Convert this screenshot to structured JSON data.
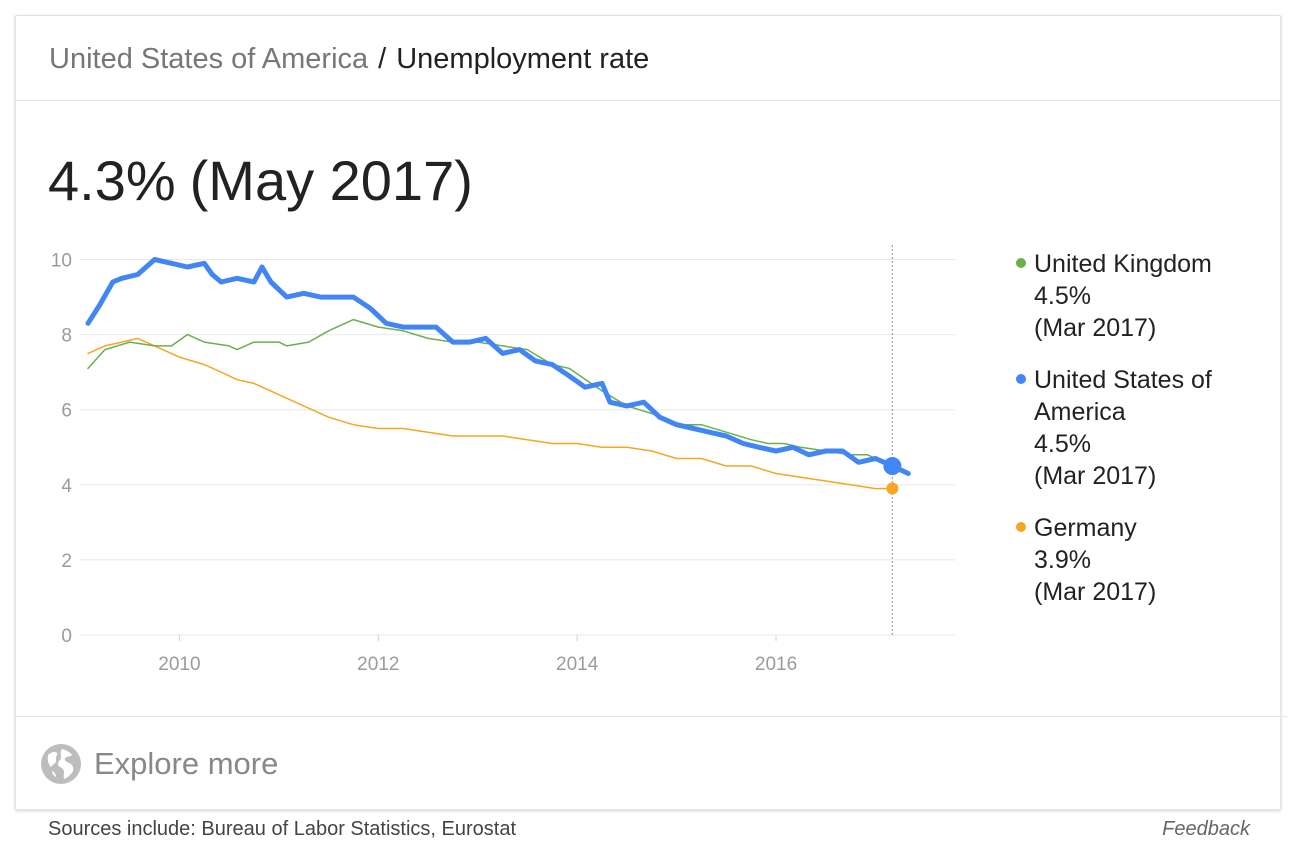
{
  "header": {
    "location": "United States of America",
    "separator": "/",
    "topic": "Unemployment rate"
  },
  "headline": {
    "value": "4.3%",
    "date": "(May 2017)"
  },
  "legend": [
    {
      "name": "United Kingdom",
      "value": "4.5%",
      "date": "(Mar 2017)",
      "color": "#6ab04c"
    },
    {
      "name_line1": "United States of",
      "name_line2": "America",
      "value": "4.5%",
      "date": "(Mar 2017)",
      "color": "#4285f4"
    },
    {
      "name": "Germany",
      "value": "3.9%",
      "date": "(Mar 2017)",
      "color": "#f5a623"
    }
  ],
  "explore": {
    "icon": "globe-icon",
    "label": "Explore more"
  },
  "footer": {
    "sources": "Sources include: Bureau of Labor Statistics, Eurostat",
    "feedback": "Feedback"
  },
  "chart_data": {
    "type": "line",
    "xlim": [
      2009.0,
      2017.8
    ],
    "ylim": [
      0,
      10
    ],
    "x_ticks": [
      2010,
      2012,
      2014,
      2016
    ],
    "x_tick_labels": [
      "2010",
      "2012",
      "2014",
      "2016"
    ],
    "y_ticks": [
      0,
      2,
      4,
      6,
      8,
      10
    ],
    "y_tick_labels": [
      "0",
      "2",
      "4",
      "6",
      "8",
      "10"
    ],
    "grid": "horizontal",
    "legend_position": "right",
    "marker_x": 2017.17,
    "series": [
      {
        "name": "United Kingdom",
        "color": "#6ab04c",
        "line_width": 1.5,
        "points": [
          [
            2009.08,
            7.1
          ],
          [
            2009.25,
            7.6
          ],
          [
            2009.5,
            7.8
          ],
          [
            2009.75,
            7.7
          ],
          [
            2009.92,
            7.7
          ],
          [
            2010.08,
            8.0
          ],
          [
            2010.25,
            7.8
          ],
          [
            2010.5,
            7.7
          ],
          [
            2010.58,
            7.6
          ],
          [
            2010.75,
            7.8
          ],
          [
            2011.0,
            7.8
          ],
          [
            2011.08,
            7.7
          ],
          [
            2011.3,
            7.8
          ],
          [
            2011.5,
            8.1
          ],
          [
            2011.75,
            8.4
          ],
          [
            2012.0,
            8.2
          ],
          [
            2012.25,
            8.1
          ],
          [
            2012.5,
            7.9
          ],
          [
            2012.75,
            7.8
          ],
          [
            2013.0,
            7.8
          ],
          [
            2013.25,
            7.7
          ],
          [
            2013.5,
            7.6
          ],
          [
            2013.75,
            7.2
          ],
          [
            2013.92,
            7.1
          ],
          [
            2014.25,
            6.5
          ],
          [
            2014.5,
            6.1
          ],
          [
            2014.75,
            5.9
          ],
          [
            2014.92,
            5.7
          ],
          [
            2015.08,
            5.6
          ],
          [
            2015.25,
            5.6
          ],
          [
            2015.5,
            5.4
          ],
          [
            2015.75,
            5.2
          ],
          [
            2015.92,
            5.1
          ],
          [
            2016.08,
            5.1
          ],
          [
            2016.25,
            5.0
          ],
          [
            2016.5,
            4.9
          ],
          [
            2016.75,
            4.8
          ],
          [
            2016.92,
            4.8
          ],
          [
            2017.17,
            4.5
          ]
        ]
      },
      {
        "name": "United States of America",
        "color": "#4285f4",
        "line_width": 5,
        "points": [
          [
            2009.08,
            8.3
          ],
          [
            2009.2,
            8.8
          ],
          [
            2009.33,
            9.4
          ],
          [
            2009.42,
            9.5
          ],
          [
            2009.58,
            9.6
          ],
          [
            2009.75,
            10.0
          ],
          [
            2009.92,
            9.9
          ],
          [
            2010.08,
            9.8
          ],
          [
            2010.25,
            9.9
          ],
          [
            2010.33,
            9.6
          ],
          [
            2010.42,
            9.4
          ],
          [
            2010.58,
            9.5
          ],
          [
            2010.75,
            9.4
          ],
          [
            2010.83,
            9.8
          ],
          [
            2010.92,
            9.4
          ],
          [
            2011.08,
            9.0
          ],
          [
            2011.25,
            9.1
          ],
          [
            2011.42,
            9.0
          ],
          [
            2011.58,
            9.0
          ],
          [
            2011.75,
            9.0
          ],
          [
            2011.92,
            8.7
          ],
          [
            2012.08,
            8.3
          ],
          [
            2012.25,
            8.2
          ],
          [
            2012.58,
            8.2
          ],
          [
            2012.75,
            7.8
          ],
          [
            2012.92,
            7.8
          ],
          [
            2013.08,
            7.9
          ],
          [
            2013.25,
            7.5
          ],
          [
            2013.42,
            7.6
          ],
          [
            2013.58,
            7.3
          ],
          [
            2013.75,
            7.2
          ],
          [
            2013.92,
            6.9
          ],
          [
            2014.08,
            6.6
          ],
          [
            2014.25,
            6.7
          ],
          [
            2014.33,
            6.2
          ],
          [
            2014.5,
            6.1
          ],
          [
            2014.67,
            6.2
          ],
          [
            2014.83,
            5.8
          ],
          [
            2015.0,
            5.6
          ],
          [
            2015.17,
            5.5
          ],
          [
            2015.33,
            5.4
          ],
          [
            2015.5,
            5.3
          ],
          [
            2015.67,
            5.1
          ],
          [
            2015.83,
            5.0
          ],
          [
            2016.0,
            4.9
          ],
          [
            2016.17,
            5.0
          ],
          [
            2016.33,
            4.8
          ],
          [
            2016.5,
            4.9
          ],
          [
            2016.67,
            4.9
          ],
          [
            2016.83,
            4.6
          ],
          [
            2017.0,
            4.7
          ],
          [
            2017.17,
            4.5
          ],
          [
            2017.25,
            4.4
          ],
          [
            2017.33,
            4.3
          ]
        ]
      },
      {
        "name": "Germany",
        "color": "#f5a623",
        "line_width": 1.5,
        "points": [
          [
            2009.08,
            7.5
          ],
          [
            2009.25,
            7.7
          ],
          [
            2009.42,
            7.8
          ],
          [
            2009.58,
            7.9
          ],
          [
            2009.75,
            7.7
          ],
          [
            2010.0,
            7.4
          ],
          [
            2010.25,
            7.2
          ],
          [
            2010.42,
            7.0
          ],
          [
            2010.58,
            6.8
          ],
          [
            2010.75,
            6.7
          ],
          [
            2011.0,
            6.4
          ],
          [
            2011.25,
            6.1
          ],
          [
            2011.5,
            5.8
          ],
          [
            2011.75,
            5.6
          ],
          [
            2012.0,
            5.5
          ],
          [
            2012.25,
            5.5
          ],
          [
            2012.5,
            5.4
          ],
          [
            2012.75,
            5.3
          ],
          [
            2013.0,
            5.3
          ],
          [
            2013.25,
            5.3
          ],
          [
            2013.5,
            5.2
          ],
          [
            2013.75,
            5.1
          ],
          [
            2014.0,
            5.1
          ],
          [
            2014.25,
            5.0
          ],
          [
            2014.5,
            5.0
          ],
          [
            2014.75,
            4.9
          ],
          [
            2015.0,
            4.7
          ],
          [
            2015.25,
            4.7
          ],
          [
            2015.5,
            4.5
          ],
          [
            2015.75,
            4.5
          ],
          [
            2016.0,
            4.3
          ],
          [
            2016.25,
            4.2
          ],
          [
            2016.5,
            4.1
          ],
          [
            2016.75,
            4.0
          ],
          [
            2017.0,
            3.9
          ],
          [
            2017.17,
            3.9
          ]
        ]
      }
    ]
  }
}
